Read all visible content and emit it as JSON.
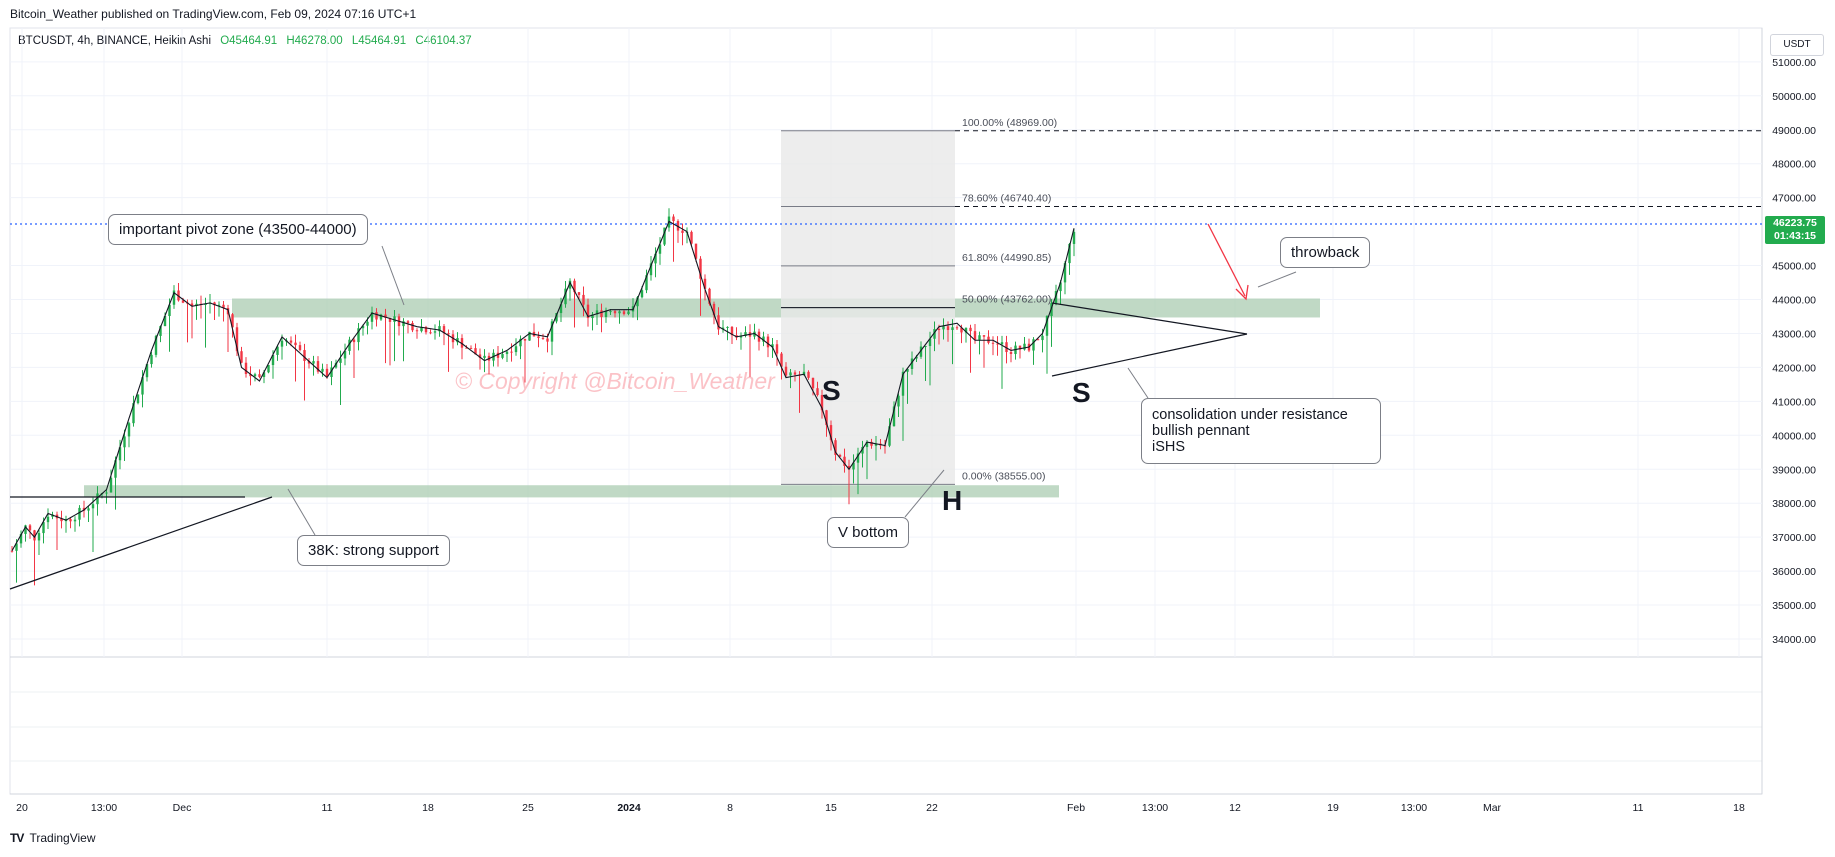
{
  "publisher": "Bitcoin_Weather published on TradingView.com, Feb 09, 2024 07:16 UTC+1",
  "legend": {
    "symbol": "BTCUSDT, 4h, BINANCE, Heikin Ashi",
    "open": "O45464.91",
    "high": "H46278.00",
    "low": "L45464.91",
    "close": "C46104.37"
  },
  "currency": "USDT",
  "last_price": {
    "price": "46223.75",
    "countdown": "01:43:15"
  },
  "watermark": "© Copyright @Bitcoin_Weather",
  "brand": "TradingView",
  "colors": {
    "up": "#22ab4e",
    "down": "#f23645",
    "zone": "#a5c9ad",
    "fib_box": "#e8e8e8",
    "pivot_dots": "#2962ff",
    "arrow": "#f23645"
  },
  "chart_data": {
    "type": "candlestick",
    "ylim": [
      33500,
      51500
    ],
    "y_ticks": [
      "34000.00",
      "35000.00",
      "36000.00",
      "37000.00",
      "38000.00",
      "39000.00",
      "40000.00",
      "41000.00",
      "42000.00",
      "43000.00",
      "44000.00",
      "45000.00",
      "47000.00",
      "48000.00",
      "49000.00",
      "50000.00",
      "51000.00"
    ],
    "x_ticks": [
      "20",
      "13:00",
      "Dec",
      "11",
      "18",
      "25",
      "2024",
      "8",
      "15",
      "22",
      "Feb",
      "13:00",
      "12",
      "19",
      "13:00",
      "Mar",
      "11",
      "18"
    ],
    "price_path": [
      [
        0,
        36600
      ],
      [
        3,
        37300
      ],
      [
        5,
        37000
      ],
      [
        8,
        37700
      ],
      [
        12,
        37500
      ],
      [
        16,
        37800
      ],
      [
        21,
        38400
      ],
      [
        26,
        40500
      ],
      [
        31,
        42500
      ],
      [
        36,
        44200
      ],
      [
        40,
        43800
      ],
      [
        44,
        43900
      ],
      [
        48,
        43700
      ],
      [
        51,
        42000
      ],
      [
        55,
        41600
      ],
      [
        60,
        42900
      ],
      [
        65,
        42300
      ],
      [
        70,
        41700
      ],
      [
        75,
        42700
      ],
      [
        80,
        43600
      ],
      [
        85,
        43400
      ],
      [
        90,
        43200
      ],
      [
        95,
        43100
      ],
      [
        100,
        42700
      ],
      [
        105,
        42200
      ],
      [
        110,
        42500
      ],
      [
        115,
        43000
      ],
      [
        119,
        42900
      ],
      [
        124,
        44500
      ],
      [
        128,
        43500
      ],
      [
        133,
        43700
      ],
      [
        138,
        43700
      ],
      [
        142,
        45000
      ],
      [
        146,
        46300
      ],
      [
        150,
        46000
      ],
      [
        154,
        44300
      ],
      [
        157,
        43200
      ],
      [
        161,
        42900
      ],
      [
        165,
        43000
      ],
      [
        169,
        42600
      ],
      [
        172,
        41700
      ],
      [
        176,
        41800
      ],
      [
        180,
        40800
      ],
      [
        183,
        39500
      ],
      [
        186,
        39000
      ],
      [
        190,
        39800
      ],
      [
        194,
        39700
      ],
      [
        198,
        41800
      ],
      [
        202,
        42500
      ],
      [
        206,
        43200
      ],
      [
        210,
        43300
      ],
      [
        214,
        42800
      ],
      [
        218,
        42800
      ],
      [
        222,
        42500
      ],
      [
        226,
        42600
      ],
      [
        229,
        43000
      ],
      [
        233,
        44500
      ],
      [
        236,
        46100
      ]
    ],
    "fib_levels": [
      {
        "label": "100.00% (48969.00)",
        "price": 48969
      },
      {
        "label": "78.60% (46740.40)",
        "price": 46740.4
      },
      {
        "label": "61.80% (44990.85)",
        "price": 44990.85
      },
      {
        "label": "50.00% (43762.00)",
        "price": 43762
      },
      {
        "label": "0.00% (38555.00)",
        "price": 38555
      }
    ],
    "zones": [
      {
        "name": "pivot",
        "from": 43500,
        "to": 44000
      },
      {
        "name": "support",
        "from": 38200,
        "to": 38500
      }
    ],
    "annotations": {
      "pivot": "important pivot zone (43500-44000)",
      "support": "38K: strong support",
      "v_bottom": "V bottom",
      "throwback": "throwback",
      "consolidation": [
        "consolidation under resistance",
        "bullish pennant",
        "iSHS"
      ]
    },
    "pattern_labels": {
      "left_shoulder": "S",
      "head": "H",
      "right_shoulder": "S"
    }
  }
}
